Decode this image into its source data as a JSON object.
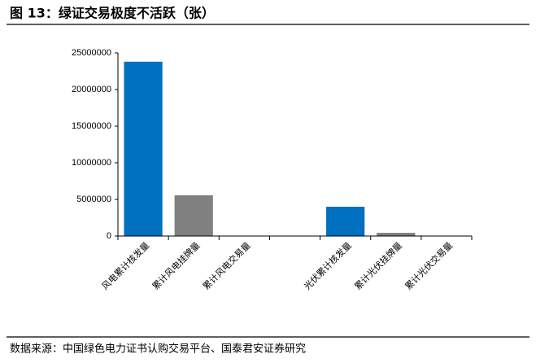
{
  "chart_data": {
    "type": "bar",
    "title": "图 13：绿证交易极度不活跃（张）",
    "source": "数据来源：中国绿色电力证书认购交易平台、国泰君安证券研究",
    "categories": [
      "风电累计核发量",
      "累计风电挂牌量",
      "累计风电交易量",
      null,
      "光伏累计核发量",
      "累计光伏挂牌量",
      "累计光伏交易量"
    ],
    "values": [
      23800000,
      5560000,
      30000,
      null,
      4000000,
      440000,
      0
    ],
    "colors": [
      "#0070c0",
      "#808080",
      "#808080",
      "#808080",
      "#0070c0",
      "#808080",
      "#808080"
    ],
    "ylim": [
      0,
      25000000
    ],
    "yticks": [
      0,
      5000000,
      10000000,
      15000000,
      20000000,
      25000000
    ],
    "grid": false
  }
}
